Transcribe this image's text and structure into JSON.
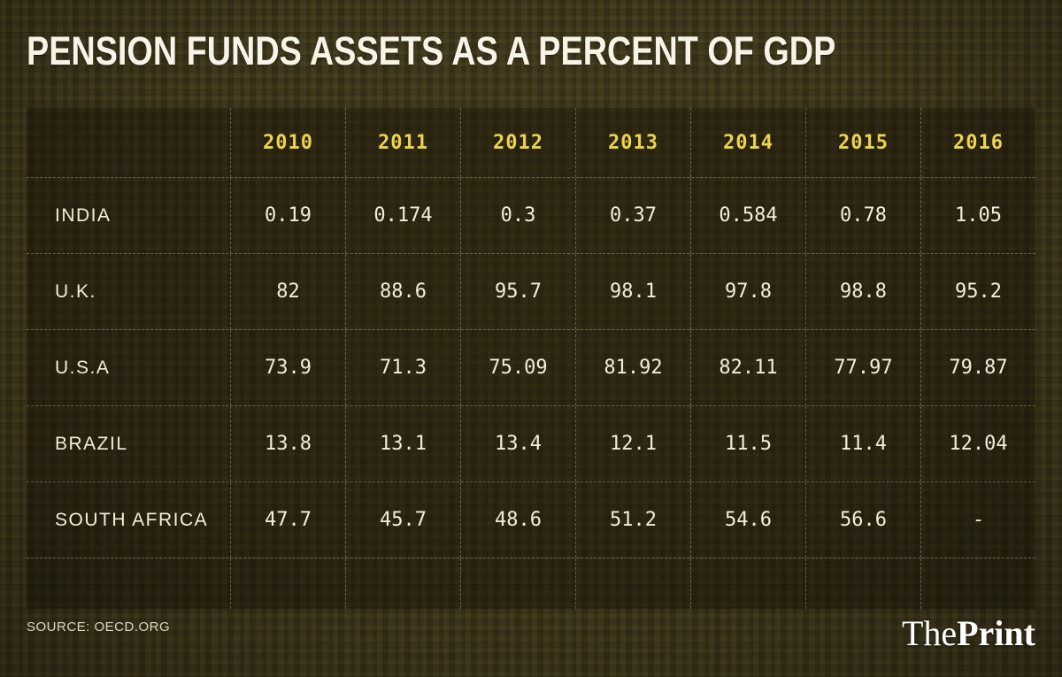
{
  "title": "PENSION FUNDS ASSETS AS A PERCENT OF GDP",
  "source": "SOURCE: OECD.ORG",
  "brand": {
    "the": "The",
    "print": "Print"
  },
  "colors": {
    "background": "#393218",
    "year_header_text": "#eed34f",
    "cell_text": "#f3edda",
    "grid_line": "rgba(214,205,173,0.38)"
  },
  "chart_data": {
    "type": "table",
    "title": "PENSION FUNDS ASSETS AS A PERCENT OF GDP",
    "columns": [
      "2010",
      "2011",
      "2012",
      "2013",
      "2014",
      "2015",
      "2016"
    ],
    "rows": [
      {
        "label": "INDIA",
        "values": [
          "0.19",
          "0.174",
          "0.3",
          "0.37",
          "0.584",
          "0.78",
          "1.05"
        ]
      },
      {
        "label": "U.K.",
        "values": [
          "82",
          "88.6",
          "95.7",
          "98.1",
          "97.8",
          "98.8",
          "95.2"
        ]
      },
      {
        "label": "U.S.A",
        "values": [
          "73.9",
          "71.3",
          "75.09",
          "81.92",
          "82.11",
          "77.97",
          "79.87"
        ]
      },
      {
        "label": "BRAZIL",
        "values": [
          "13.8",
          "13.1",
          "13.4",
          "12.1",
          "11.5",
          "11.4",
          "12.04"
        ]
      },
      {
        "label": "SOUTH AFRICA",
        "values": [
          "47.7",
          "45.7",
          "48.6",
          "51.2",
          "54.6",
          "56.6",
          "-"
        ]
      }
    ],
    "source": "OECD.ORG"
  }
}
